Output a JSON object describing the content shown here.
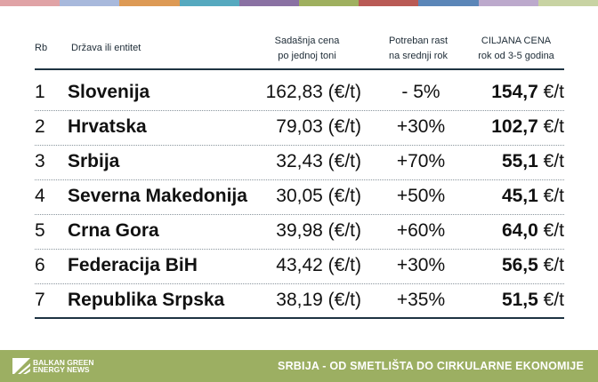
{
  "stripe_colors": [
    "#e0a3a6",
    "#a8b9dc",
    "#dd9a55",
    "#56a9bf",
    "#8a71a3",
    "#9fb05f",
    "#b95a55",
    "#5b86b8",
    "#bca9cc",
    "#c8d3a3"
  ],
  "header": {
    "rb": "Rb",
    "name": "Država ili entitet",
    "current_l1": "Sadašnja cena",
    "current_l2": "po jednoj toni",
    "growth_l1": "Potreban rast",
    "growth_l2": "na srednji rok",
    "target_l1": "CILJANA CENA",
    "target_l2": "rok od 3-5 godina"
  },
  "rows": [
    {
      "rb": "1",
      "name": "Slovenija",
      "current": "162,83 (€/t)",
      "growth": "- 5%",
      "target": "154,7",
      "unit": " €/t"
    },
    {
      "rb": "2",
      "name": "Hrvatska",
      "current": "79,03 (€/t)",
      "growth": "+30%",
      "target": "102,7",
      "unit": " €/t"
    },
    {
      "rb": "3",
      "name": "Srbija",
      "current": "32,43 (€/t)",
      "growth": "+70%",
      "target": "55,1",
      "unit": " €/t"
    },
    {
      "rb": "4",
      "name": "Severna Makedonija",
      "current": "30,05 (€/t)",
      "growth": "+50%",
      "target": "45,1",
      "unit": " €/t"
    },
    {
      "rb": "5",
      "name": "Crna Gora",
      "current": "39,98 (€/t)",
      "growth": "+60%",
      "target": "64,0",
      "unit": " €/t"
    },
    {
      "rb": "6",
      "name": "Federacija BiH",
      "current": "43,42 (€/t)",
      "growth": "+30%",
      "target": "56,5",
      "unit": " €/t"
    },
    {
      "rb": "7",
      "name": "Republika Srpska",
      "current": "38,19 (€/t)",
      "growth": "+35%",
      "target": "51,5",
      "unit": " €/t"
    }
  ],
  "footer": {
    "logo_l1": "BALKAN GREEN",
    "logo_l2": "ENERGY NEWS",
    "title": "SRBIJA - OD SMETLIŠTA DO CIRKULARNE EKONOMIJE",
    "color": "#9caf62"
  }
}
